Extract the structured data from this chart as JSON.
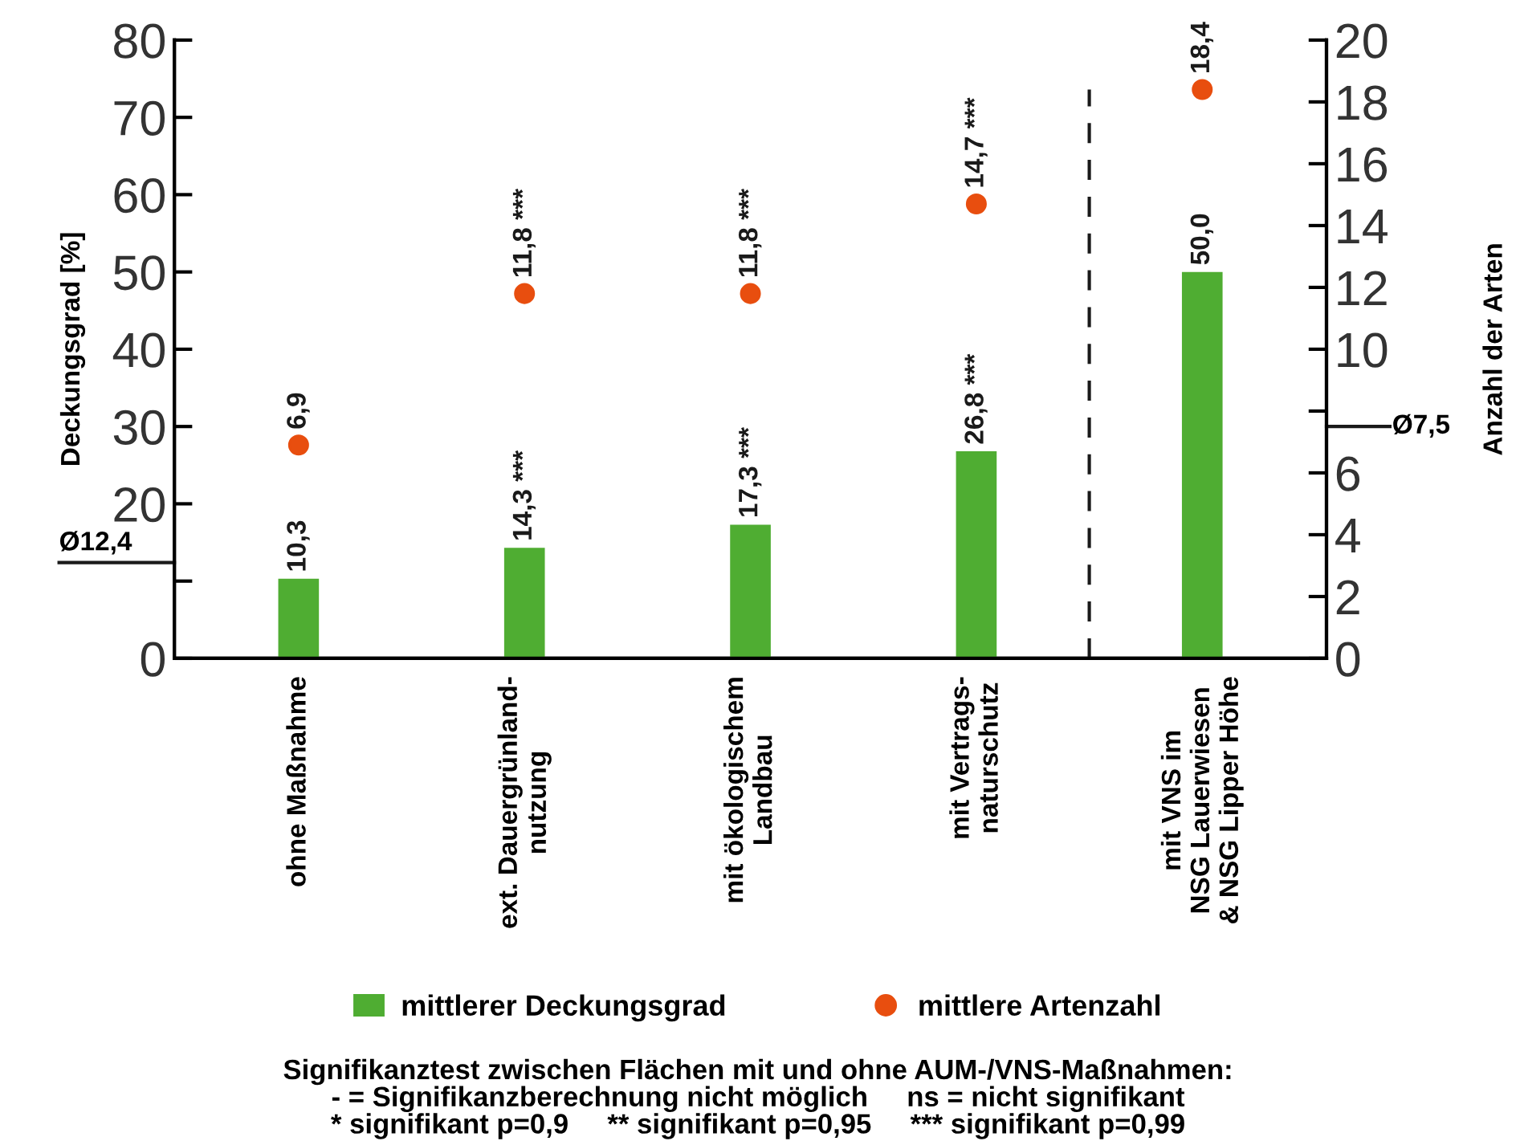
{
  "chart_data": {
    "type": "bar",
    "categories": [
      "ohne Maßnahme",
      "ext. Dauergrünland-\nnutzung",
      "mit ökologischem\nLandbau",
      "mit Vertrags-\nnaturschutz",
      "mit VNS im\nNSG Lauerwiesen\n& NSG Lipper Höhe"
    ],
    "series": [
      {
        "name": "mittlerer Deckungsgrad",
        "color": "#4fad32",
        "values": [
          10.3,
          14.3,
          17.3,
          26.8,
          50.0
        ],
        "value_labels": [
          "10,3",
          "14,3 ***",
          "17,3 ***",
          "26,8 ***",
          "50,0"
        ]
      },
      {
        "name": "mittlere Artenzahl",
        "type": "scatter",
        "axis": "y2",
        "color": "#e84e0f",
        "values": [
          6.9,
          11.8,
          11.8,
          14.7,
          18.4
        ],
        "value_labels": [
          "6,9",
          "11,8 ***",
          "11,8 ***",
          "14,7 ***",
          "18,4"
        ]
      }
    ],
    "ylabel": "Deckungsgrad [%]",
    "y2label": "Anzahl der Arten",
    "ylim": [
      0,
      80
    ],
    "yticks": [
      0,
      {
        "value": 10,
        "label": null
      },
      20,
      30,
      40,
      50,
      60,
      70,
      80
    ],
    "y2lim": [
      0,
      20
    ],
    "y2ticks": [
      0,
      2,
      4,
      6,
      {
        "value": 8,
        "label": null
      },
      10,
      12,
      14,
      16,
      18,
      20
    ],
    "ref_lines": [
      {
        "axis": "y",
        "value": 12.4,
        "label": "Ø12,4",
        "color": "#1a1a1a"
      },
      {
        "axis": "y2",
        "value": 7.5,
        "label": "Ø7,5",
        "color": "#1a1a1a"
      }
    ],
    "marker": "circle",
    "grid": false,
    "legend": "bottom",
    "annotations": [
      "Signifikanztest zwischen Flächen mit und ohne AUM-/VNS-Maßnahmen:\n- = Signifikanzberechnung nicht möglich     ns = nicht signifikant\n* signifikant p=0,9     ** signifikant p=0,95     *** signifikant p=0,99"
    ]
  }
}
